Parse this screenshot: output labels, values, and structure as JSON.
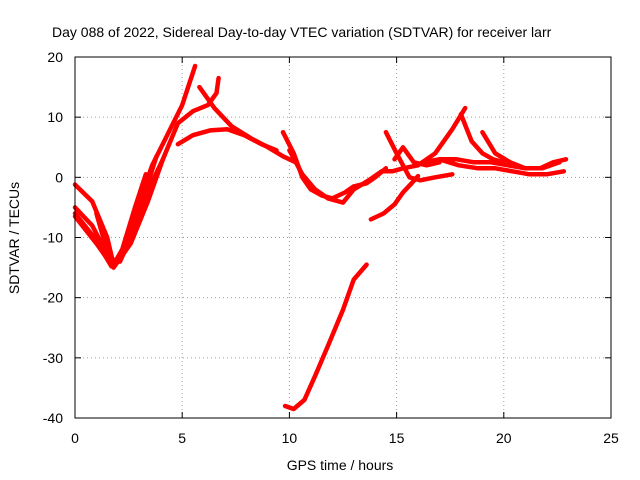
{
  "chart_data": {
    "type": "line",
    "title": "Day 088 of 2022, Sidereal Day-to-day VTEC variation (SDTVAR) for receiver larr",
    "xlabel": "GPS time / hours",
    "ylabel": "SDTVAR / TECUs",
    "xlim": [
      0,
      25
    ],
    "ylim": [
      -40,
      20
    ],
    "xticks": [
      "0",
      "5",
      "10",
      "15",
      "20",
      "25"
    ],
    "yticks": [
      "-40",
      "-30",
      "-20",
      "-10",
      "0",
      "10",
      "20"
    ],
    "grid": true,
    "color": "#ff0000",
    "series": [
      {
        "name": "s1",
        "x": [
          0.0,
          0.8,
          1.5,
          1.8,
          2.2,
          2.8,
          3.3
        ],
        "y": [
          -1.2,
          -4.0,
          -10.0,
          -14.5,
          -12.0,
          -5.0,
          0.5
        ]
      },
      {
        "name": "s2",
        "x": [
          0.0,
          0.8,
          1.6,
          2.0,
          2.5,
          3.1,
          3.6,
          4.3,
          5.0,
          5.6
        ],
        "y": [
          -5.0,
          -8.0,
          -13.5,
          -14.0,
          -10.0,
          -3.0,
          2.0,
          7.0,
          12.0,
          18.5
        ]
      },
      {
        "name": "s3",
        "x": [
          0.0,
          0.9,
          1.7,
          2.1,
          2.7,
          3.3,
          3.8
        ],
        "y": [
          -6.0,
          -10.0,
          -14.8,
          -13.5,
          -8.0,
          -2.0,
          3.5
        ]
      },
      {
        "name": "s4",
        "x": [
          0.0,
          1.0,
          1.8,
          2.6,
          3.4,
          4.1,
          4.8,
          5.5,
          6.2,
          6.6,
          6.7
        ],
        "y": [
          -6.5,
          -11.0,
          -15.0,
          -11.0,
          -4.0,
          3.0,
          9.0,
          11.0,
          12.0,
          14.0,
          16.5
        ]
      },
      {
        "name": "s5",
        "x": [
          1.0,
          1.6,
          2.1,
          2.8,
          3.5,
          4.1
        ],
        "y": [
          -6.0,
          -13.5,
          -14.0,
          -8.5,
          -1.5,
          3.0
        ]
      },
      {
        "name": "s6",
        "x": [
          4.8,
          5.5,
          6.3,
          7.1,
          7.9,
          8.7,
          9.4
        ],
        "y": [
          5.5,
          7.0,
          7.8,
          8.0,
          7.0,
          5.5,
          4.5
        ]
      },
      {
        "name": "s7",
        "x": [
          5.8,
          6.5,
          7.3,
          8.2,
          9.0,
          9.7,
          10.3
        ],
        "y": [
          15.0,
          11.5,
          8.5,
          6.5,
          5.0,
          3.5,
          2.5
        ]
      },
      {
        "name": "s8",
        "x": [
          9.7,
          10.2,
          10.6,
          11.0,
          11.5,
          12.0,
          12.6,
          13.0,
          13.6,
          14.0,
          14.5
        ],
        "y": [
          7.5,
          4.0,
          0.0,
          -2.0,
          -3.0,
          -3.5,
          -2.5,
          -1.5,
          -1.0,
          0.0,
          1.5
        ]
      },
      {
        "name": "s9",
        "x": [
          10.0,
          10.6,
          11.2,
          11.8,
          12.5,
          13.0,
          13.7,
          14.3,
          14.8,
          15.3,
          16.0,
          16.8,
          17.6,
          18.2
        ],
        "y": [
          4.5,
          0.5,
          -2.0,
          -3.5,
          -4.2,
          -2.0,
          -0.5,
          1.0,
          1.0,
          1.5,
          2.0,
          4.0,
          8.0,
          11.5
        ]
      },
      {
        "name": "s10",
        "x": [
          13.8,
          14.4,
          14.9,
          15.3,
          15.7,
          16.0
        ],
        "y": [
          -7.0,
          -6.0,
          -4.5,
          -2.5,
          -1.0,
          0.2
        ]
      },
      {
        "name": "s11",
        "x": [
          14.5,
          15.0,
          15.3,
          15.6,
          16.1,
          16.8,
          17.6
        ],
        "y": [
          7.5,
          4.0,
          2.0,
          0.0,
          -0.5,
          0.0,
          0.5
        ]
      },
      {
        "name": "s12",
        "x": [
          14.9,
          15.3,
          15.8,
          16.4,
          17.0
        ],
        "y": [
          3.0,
          5.0,
          2.5,
          2.0,
          2.5
        ]
      },
      {
        "name": "s13",
        "x": [
          16.2,
          17.0,
          17.9,
          18.8,
          19.6,
          20.4,
          21.2,
          22.0,
          22.8
        ],
        "y": [
          2.5,
          3.0,
          2.0,
          1.5,
          1.5,
          1.0,
          0.5,
          0.5,
          1.0
        ]
      },
      {
        "name": "s14",
        "x": [
          17.0,
          17.8,
          18.6,
          19.4,
          20.2,
          21.0,
          21.8,
          22.6
        ],
        "y": [
          3.0,
          3.0,
          2.5,
          2.5,
          2.0,
          1.5,
          1.5,
          2.5
        ]
      },
      {
        "name": "s15",
        "x": [
          18.0,
          18.5,
          19.0,
          19.5,
          20.0
        ],
        "y": [
          10.5,
          6.0,
          4.0,
          3.0,
          2.5
        ]
      },
      {
        "name": "s16",
        "x": [
          19.0,
          19.6,
          20.3,
          21.0,
          21.7,
          22.3,
          22.9
        ],
        "y": [
          7.5,
          4.0,
          2.5,
          1.5,
          1.5,
          2.5,
          3.0
        ]
      },
      {
        "name": "s17",
        "x": [
          9.8,
          10.2,
          10.7,
          11.2,
          11.8,
          12.5,
          13.0,
          13.6
        ],
        "y": [
          -38.0,
          -38.5,
          -37.0,
          -33.0,
          -28.0,
          -22.0,
          -17.0,
          -14.5
        ]
      }
    ]
  }
}
